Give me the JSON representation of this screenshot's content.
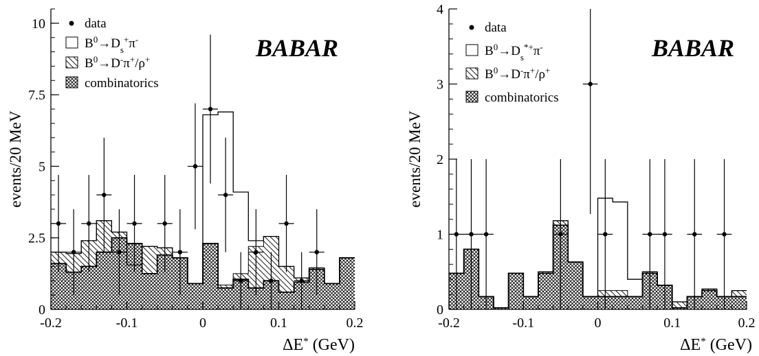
{
  "chart_data": [
    {
      "type": "histogram",
      "ylabel": "events/20 MeV",
      "xlabel": "ΔE* (GeV)",
      "xlim": [
        -0.2,
        0.2
      ],
      "ylim": [
        0,
        10.5
      ],
      "xticks": [
        "-0.2",
        "-0.1",
        "0",
        "0.1",
        "0.2"
      ],
      "yticks": [
        "0",
        "2.5",
        "5",
        "7.5",
        "10"
      ],
      "ytick_values": [
        0,
        2.5,
        5,
        7.5,
        10
      ],
      "watermark": "BABAR",
      "legend": {
        "placement": "top-left",
        "entries": [
          {
            "key": "data",
            "label": "data"
          },
          {
            "key": "signal",
            "label": "B0→Ds+π-"
          },
          {
            "key": "peaking",
            "label": "B0→D-π+/ρ+"
          },
          {
            "key": "comb",
            "label": "combinatorics"
          }
        ]
      },
      "bin_edges": [
        -0.2,
        -0.19,
        -0.18,
        -0.17,
        -0.16,
        -0.15,
        -0.14,
        -0.13,
        -0.12,
        -0.11,
        -0.1,
        -0.09,
        -0.08,
        -0.07,
        -0.06,
        -0.05,
        -0.04,
        -0.03,
        -0.02,
        -0.01,
        0.0,
        0.01,
        0.02,
        0.03,
        0.04,
        0.05,
        0.06,
        0.07,
        0.08,
        0.09,
        0.1,
        0.11,
        0.12,
        0.13,
        0.14,
        0.15,
        0.16,
        0.17,
        0.18,
        0.19,
        0.2
      ],
      "combinatorics": [
        1.6,
        1.6,
        1.3,
        1.3,
        1.5,
        1.5,
        2.0,
        2.0,
        2.5,
        2.5,
        2.3,
        2.3,
        1.25,
        1.25,
        1.9,
        1.9,
        1.8,
        1.8,
        0.9,
        0.9,
        2.3,
        2.3,
        0.75,
        0.75,
        1.05,
        1.05,
        0.75,
        0.75,
        1.0,
        1.0,
        0.6,
        0.6,
        0.95,
        0.95,
        1.4,
        1.4,
        0.9,
        0.9,
        1.8,
        1.8
      ],
      "peaking_total": [
        2.0,
        2.0,
        1.95,
        1.95,
        2.4,
        2.4,
        3.1,
        3.1,
        2.7,
        2.7,
        1.55,
        1.55,
        2.2,
        2.2,
        2.15,
        2.15,
        1.8,
        1.8,
        0.9,
        0.9,
        2.3,
        2.3,
        0.85,
        0.85,
        1.25,
        1.25,
        2.2,
        2.2,
        2.55,
        2.55,
        1.5,
        1.5,
        1.1,
        1.1,
        1.45,
        1.45,
        0.9,
        0.9,
        1.8,
        1.8
      ],
      "signal_total": [
        2.0,
        2.0,
        1.95,
        1.95,
        2.4,
        2.4,
        3.1,
        3.1,
        2.7,
        2.7,
        1.55,
        1.55,
        2.2,
        2.2,
        2.15,
        2.15,
        1.8,
        1.8,
        0.9,
        0.9,
        6.8,
        6.8,
        6.9,
        6.9,
        4.1,
        4.1,
        2.4,
        2.4,
        2.55,
        2.55,
        1.5,
        1.5,
        1.1,
        1.1,
        1.45,
        1.45,
        0.9,
        0.9,
        1.8,
        1.8
      ],
      "data_points": [
        {
          "x": -0.19,
          "y": 3,
          "err": 1.7
        },
        {
          "x": -0.17,
          "y": 2,
          "err": 1.5
        },
        {
          "x": -0.15,
          "y": 3,
          "err": 1.7
        },
        {
          "x": -0.13,
          "y": 4,
          "err": 2.0
        },
        {
          "x": -0.11,
          "y": 2,
          "err": 1.5
        },
        {
          "x": -0.09,
          "y": 3,
          "err": 1.7
        },
        {
          "x": -0.05,
          "y": 3,
          "err": 1.7
        },
        {
          "x": -0.03,
          "y": 2,
          "err": 1.5
        },
        {
          "x": -0.01,
          "y": 5,
          "err": 2.2
        },
        {
          "x": 0.01,
          "y": 7,
          "err": 2.6
        },
        {
          "x": 0.03,
          "y": 4,
          "err": 2.0
        },
        {
          "x": 0.05,
          "y": 1,
          "err": 1.0
        },
        {
          "x": 0.07,
          "y": 2,
          "err": 1.5
        },
        {
          "x": 0.09,
          "y": 1,
          "err": 1.0
        },
        {
          "x": 0.11,
          "y": 3,
          "err": 1.7
        },
        {
          "x": 0.13,
          "y": 1,
          "err": 1.0
        },
        {
          "x": 0.15,
          "y": 2,
          "err": 1.5
        }
      ]
    },
    {
      "type": "histogram",
      "ylabel": "events/20 MeV",
      "xlabel": "ΔE* (GeV)",
      "xlim": [
        -0.2,
        0.2
      ],
      "ylim": [
        0,
        4
      ],
      "xticks": [
        "-0.2",
        "-0.1",
        "0",
        "0.1",
        "0.2"
      ],
      "yticks": [
        "0",
        "1",
        "2",
        "3",
        "4"
      ],
      "ytick_values": [
        0,
        1,
        2,
        3,
        4
      ],
      "watermark": "BABAR",
      "legend": {
        "placement": "top-left",
        "entries": [
          {
            "key": "data",
            "label": "data"
          },
          {
            "key": "signal",
            "label": "B0→Ds*+π-"
          },
          {
            "key": "peaking",
            "label": "B0→D-π+/ρ+"
          },
          {
            "key": "comb",
            "label": "combinatorics"
          }
        ]
      },
      "bin_edges": [
        -0.2,
        -0.19,
        -0.18,
        -0.17,
        -0.16,
        -0.15,
        -0.14,
        -0.13,
        -0.12,
        -0.11,
        -0.1,
        -0.09,
        -0.08,
        -0.07,
        -0.06,
        -0.05,
        -0.04,
        -0.03,
        -0.02,
        -0.01,
        0.0,
        0.01,
        0.02,
        0.03,
        0.04,
        0.05,
        0.06,
        0.07,
        0.08,
        0.09,
        0.1,
        0.11,
        0.12,
        0.13,
        0.14,
        0.15,
        0.16,
        0.17,
        0.18,
        0.19,
        0.2
      ],
      "combinatorics": [
        0.48,
        0.48,
        0.8,
        0.8,
        0.17,
        0.17,
        0.02,
        0.02,
        0.48,
        0.48,
        0.17,
        0.17,
        0.48,
        0.48,
        1.12,
        1.12,
        0.63,
        0.63,
        0.17,
        0.17,
        0.17,
        0.17,
        0.17,
        0.17,
        0.17,
        0.17,
        0.48,
        0.48,
        0.32,
        0.32,
        0.02,
        0.02,
        0.17,
        0.17,
        0.25,
        0.25,
        0.17,
        0.17,
        0.17,
        0.17
      ],
      "peaking_total": [
        0.48,
        0.48,
        0.8,
        0.8,
        0.17,
        0.17,
        0.02,
        0.02,
        0.48,
        0.48,
        0.17,
        0.17,
        0.5,
        0.5,
        1.18,
        1.18,
        0.63,
        0.63,
        0.17,
        0.17,
        0.25,
        0.25,
        0.25,
        0.25,
        0.17,
        0.17,
        0.5,
        0.5,
        0.32,
        0.32,
        0.1,
        0.1,
        0.17,
        0.17,
        0.27,
        0.27,
        0.17,
        0.17,
        0.25,
        0.25
      ],
      "signal_total": [
        0.48,
        0.48,
        0.8,
        0.8,
        0.17,
        0.17,
        0.02,
        0.02,
        0.48,
        0.48,
        0.17,
        0.17,
        0.5,
        0.5,
        1.18,
        1.18,
        0.63,
        0.63,
        0.17,
        0.17,
        1.48,
        1.48,
        1.43,
        1.43,
        0.4,
        0.4,
        0.5,
        0.5,
        0.32,
        0.32,
        0.1,
        0.1,
        0.17,
        0.17,
        0.27,
        0.27,
        0.17,
        0.17,
        0.25,
        0.25
      ],
      "data_points": [
        {
          "x": -0.19,
          "y": 1,
          "err": 1.0
        },
        {
          "x": -0.17,
          "y": 1,
          "err": 1.0
        },
        {
          "x": -0.15,
          "y": 1,
          "err": 1.0
        },
        {
          "x": -0.05,
          "y": 1,
          "err": 1.0
        },
        {
          "x": -0.01,
          "y": 3,
          "err": 1.73
        },
        {
          "x": 0.01,
          "y": 1,
          "err": 1.0
        },
        {
          "x": 0.07,
          "y": 1,
          "err": 1.0
        },
        {
          "x": 0.09,
          "y": 1,
          "err": 1.0
        },
        {
          "x": 0.13,
          "y": 1,
          "err": 1.0
        },
        {
          "x": 0.17,
          "y": 1,
          "err": 1.0
        }
      ]
    }
  ]
}
